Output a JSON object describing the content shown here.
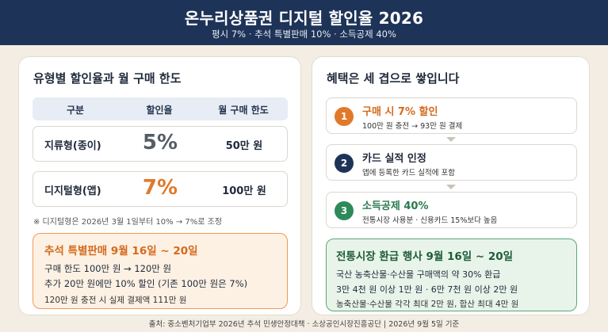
{
  "header": {
    "title": "온누리상품권 디지털 할인율 2026",
    "subtitle": "평시 7%  ·  추석 특별판매 10%  ·  소득공제 40%"
  },
  "left": {
    "title": "유형별 할인율과 월 구매 한도",
    "table": {
      "headers": [
        "구분",
        "할인율",
        "월 구매 한도"
      ],
      "rows": [
        {
          "type": "지류형(종이)",
          "rate": "5%",
          "limit": "50만 원"
        },
        {
          "type": "디지털형(앱)",
          "rate": "7%",
          "limit": "100만 원"
        }
      ]
    },
    "footnote": "※ 디지털형은 2026년 3월 1일부터 10% → 7%로 조정",
    "chuseok": {
      "title": "추석 특별판매  9월 16일 ~ 20일",
      "line1": "구매 한도 100만 원 → 120만 원",
      "line2": "추가 20만 원에만 10% 할인 (기존 100만 원은 7%)",
      "note": "120만 원 충전 시 실제 결제액 111만 원"
    }
  },
  "right": {
    "title": "혜택은 세 겹으로 쌓입니다",
    "layers": [
      {
        "num": "1",
        "title": "구매 시 7% 할인",
        "desc": "100만 원 충전 → 93만 원 결제"
      },
      {
        "num": "2",
        "title": "카드 실적 인정",
        "desc": "앱에 등록한 카드 실적에 포함"
      },
      {
        "num": "3",
        "title": "소득공제 40%",
        "desc": "전통시장 사용분 · 신용카드 15%보다 높음"
      }
    ],
    "refund": {
      "title": "전통시장 환급 행사  9월 16일 ~ 20일",
      "line1": "국산 농축산물·수산물 구매액의 약 30% 환급",
      "line2": "3만 4천 원 이상 1만 원 · 6만 7천 원 이상 2만 원",
      "line3": "농축산물·수산물 각각 최대 2만 원, 합산 최대 4만 원"
    }
  },
  "source": "출처: 중소벤처기업부 2026년 추석 민생안정대책 · 소상공인시장진흥공단  |  2026년 9월 5일 기준",
  "colors": {
    "navy": "#1e3358",
    "orange": "#e07a2a",
    "green": "#2e8a59",
    "background": "#f4ede3"
  }
}
